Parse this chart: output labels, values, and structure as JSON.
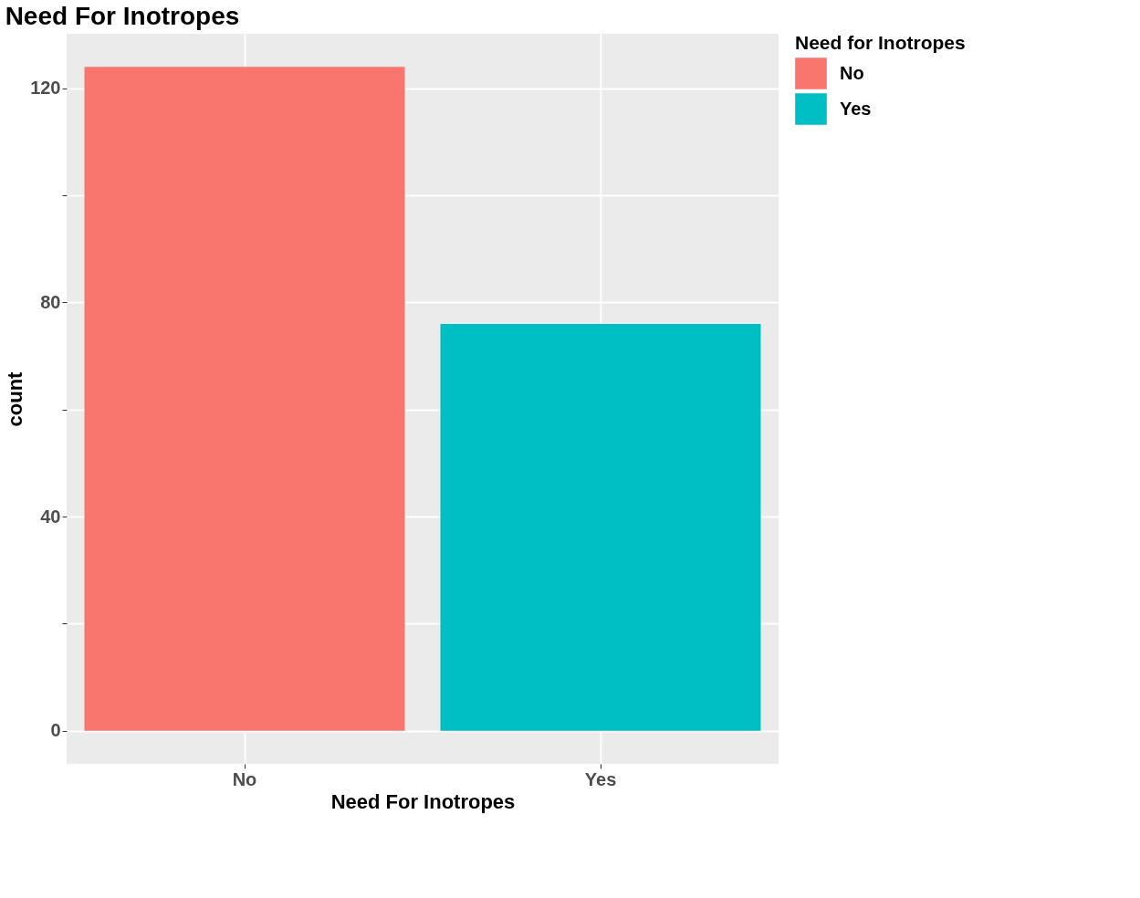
{
  "chart_data": {
    "type": "bar",
    "title": "Need For Inotropes",
    "xlabel": "Need For Inotropes",
    "ylabel": "count",
    "legend_title": "Need for Inotropes",
    "categories": [
      "No",
      "Yes"
    ],
    "series": [
      {
        "name": "No",
        "color": "#f8766d",
        "values": [
          124,
          null
        ]
      },
      {
        "name": "Yes",
        "color": "#00bfc4",
        "values": [
          null,
          76
        ]
      }
    ],
    "ylim": [
      -6.2,
      130.2
    ],
    "yticks": [
      0,
      {
        "value": 20,
        "label": null
      },
      40,
      {
        "value": 60,
        "label": null
      },
      80,
      {
        "value": 100,
        "label": null
      },
      120
    ],
    "grid": true,
    "legend": "right"
  }
}
